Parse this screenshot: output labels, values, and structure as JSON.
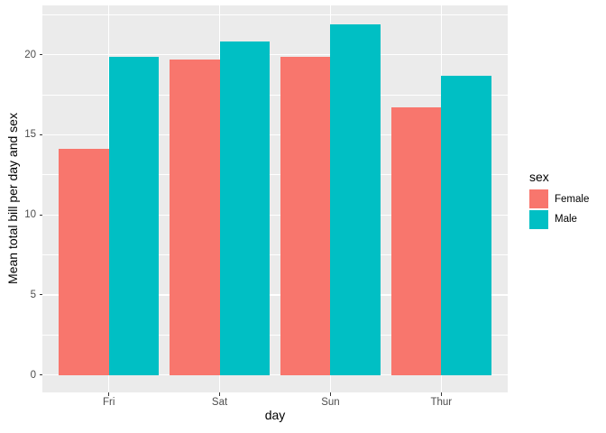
{
  "chart_data": {
    "type": "bar",
    "title": "",
    "xlabel": "day",
    "ylabel": "Mean total bill per day and sex",
    "categories": [
      "Fri",
      "Sat",
      "Sun",
      "Thur"
    ],
    "series": [
      {
        "name": "Female",
        "color": "#F8766D",
        "values": [
          14.15,
          19.68,
          19.87,
          16.72
        ]
      },
      {
        "name": "Male",
        "color": "#00BFC4",
        "values": [
          19.86,
          20.8,
          21.89,
          18.71
        ]
      }
    ],
    "ylim": [
      -1.09,
      23.08
    ],
    "y_major_ticks": [
      0,
      5,
      10,
      15,
      20
    ],
    "y_minor_gridlines": [
      2.5,
      7.5,
      12.5,
      17.5,
      22.5
    ],
    "grid_on": true,
    "legend": {
      "title": "sex",
      "position": "right",
      "entries": [
        "Female",
        "Male"
      ]
    },
    "style": {
      "panel_bg": "#EBEBEB",
      "grid_color": "#FFFFFF",
      "tick_color": "#333333",
      "tick_label_color": "#4D4D4D",
      "title_color": "#000000",
      "bar_group_width_ratio": 0.9,
      "dodged": true
    }
  }
}
